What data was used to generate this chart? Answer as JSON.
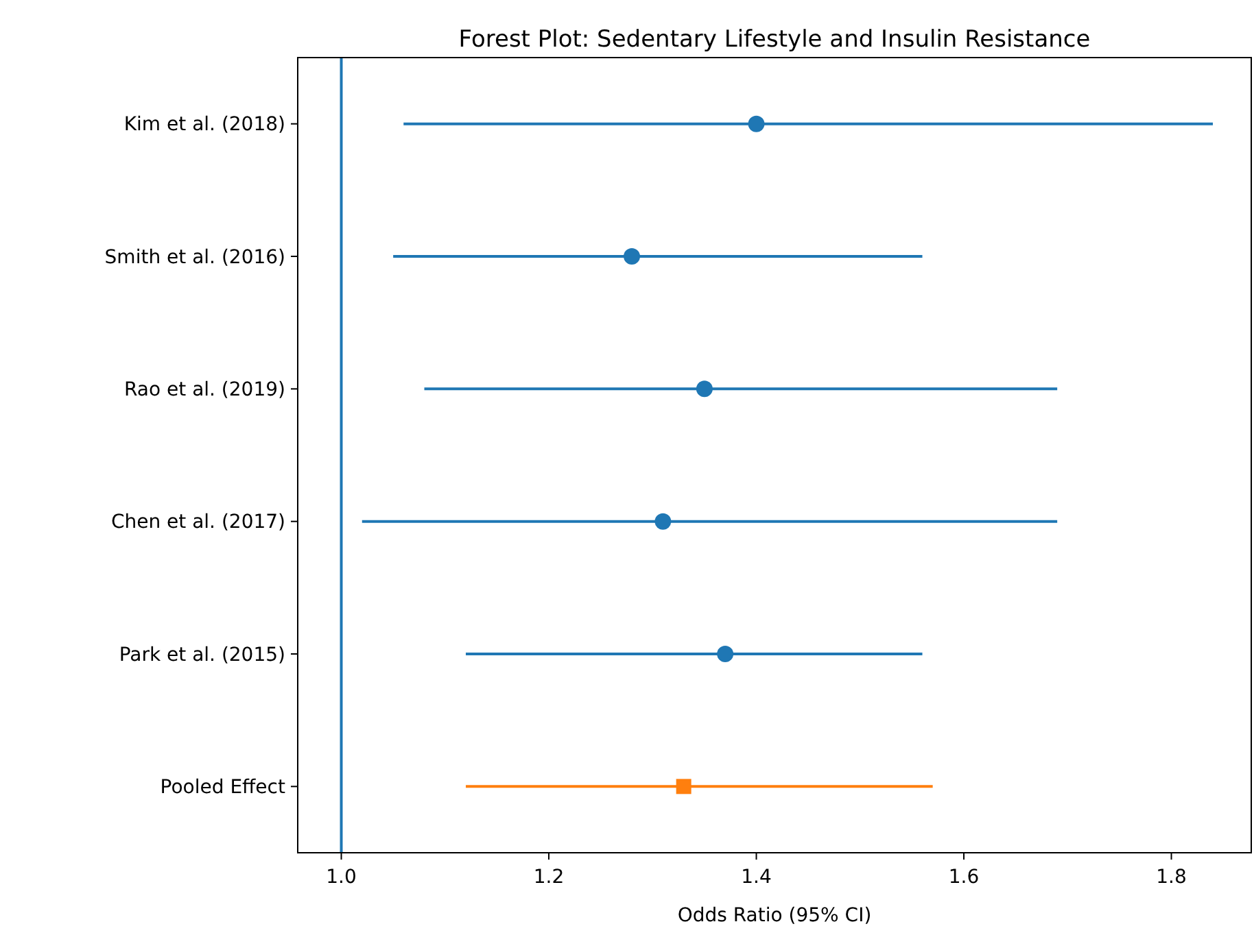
{
  "chart_data": {
    "type": "scatter",
    "orientation": "horizontal",
    "title": "Forest Plot: Sedentary Lifestyle and Insulin Resistance",
    "xlabel": "Odds Ratio (95% CI)",
    "categories": [
      "Kim et al. (2018)",
      "Smith et al. (2016)",
      "Rao et al. (2019)",
      "Chen et al. (2017)",
      "Park et al. (2015)",
      "Pooled Effect"
    ],
    "xlim": [
      0.958,
      1.877
    ],
    "xticks": [
      {
        "value": 1.0,
        "label": "1.0"
      },
      {
        "value": 1.2,
        "label": "1.2"
      },
      {
        "value": 1.4,
        "label": "1.4"
      },
      {
        "value": 1.6,
        "label": "1.6"
      },
      {
        "value": 1.8,
        "label": "1.8"
      }
    ],
    "grid": false,
    "ref_lines": [
      {
        "axis": "x",
        "value": 1.0,
        "color": "#1f77b4"
      }
    ],
    "series": [
      {
        "color": "#1f77b4",
        "marker": "circle",
        "values": [
          1.4,
          1.28,
          1.35,
          1.31,
          1.37,
          null
        ],
        "errors": [
          [
            1.06,
            1.84
          ],
          [
            1.05,
            1.56
          ],
          [
            1.08,
            1.69
          ],
          [
            1.02,
            1.69
          ],
          [
            1.12,
            1.56
          ],
          null
        ]
      },
      {
        "color": "#ff7f0e",
        "marker": "square",
        "values": [
          null,
          null,
          null,
          null,
          null,
          1.33
        ],
        "errors": [
          null,
          null,
          null,
          null,
          null,
          [
            1.12,
            1.57
          ]
        ]
      }
    ]
  }
}
